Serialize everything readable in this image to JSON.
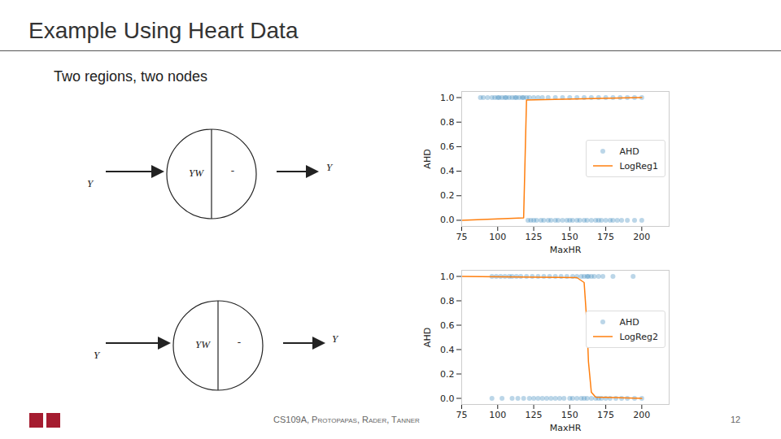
{
  "slide": {
    "title": "Example Using Heart Data",
    "subtitle": "Two regions, two nodes",
    "footer": "CS109A, Protopapas, Rader, Tanner",
    "page": 12
  },
  "diagrams": [
    {
      "input": "Y",
      "weights": "YW",
      "activation": "-",
      "output": "Y"
    },
    {
      "input": "Y",
      "weights": "YW",
      "activation": "-",
      "output": "Y"
    }
  ],
  "chart_data": [
    {
      "type": "scatter",
      "x_label": "MaxHR",
      "y_label": "AHD",
      "xlim": [
        75,
        219
      ],
      "xticks": [
        75,
        100,
        125,
        150,
        175,
        200
      ],
      "ylim": [
        -0.05,
        1.05
      ],
      "yticks": [
        {
          "value": 0,
          "label": "0.0"
        },
        0.2,
        0.4,
        0.6,
        0.8,
        {
          "value": 1,
          "label": "1.0"
        }
      ],
      "grid": false,
      "legend": "right",
      "series": [
        {
          "name": "AHD",
          "type": "scatter",
          "marker": "circle",
          "color": "#1f77b4",
          "x": [
            88,
            90,
            93,
            96,
            98,
            100,
            101,
            103,
            105,
            106,
            108,
            110,
            112,
            113,
            115,
            117,
            118,
            120,
            122,
            125,
            128,
            131,
            135,
            140,
            145,
            150,
            155,
            160,
            165,
            170,
            175,
            180,
            185,
            190,
            195,
            200,
            121,
            123,
            125,
            127,
            130,
            132,
            135,
            137,
            140,
            142,
            145,
            148,
            150,
            152,
            155,
            157,
            160,
            162,
            165,
            168,
            170,
            172,
            175,
            178,
            180,
            183,
            186,
            190,
            195,
            200
          ],
          "values": [
            1,
            1,
            1,
            1,
            1,
            1,
            1,
            1,
            1,
            1,
            1,
            1,
            1,
            1,
            1,
            1,
            1,
            1,
            1,
            1,
            1,
            1,
            1,
            1,
            1,
            1,
            1,
            1,
            1,
            1,
            1,
            1,
            1,
            1,
            1,
            1,
            0,
            0,
            0,
            0,
            0,
            0,
            0,
            0,
            0,
            0,
            0,
            0,
            0,
            0,
            0,
            0,
            0,
            0,
            0,
            0,
            0,
            0,
            0,
            0,
            0,
            0,
            0,
            0,
            0,
            0
          ]
        },
        {
          "name": "LogReg1",
          "type": "line",
          "line_style": "solid",
          "color": "#ff7f0e",
          "x": [
            75,
            118,
            119,
            120,
            200
          ],
          "values": [
            0,
            0.02,
            0.5,
            0.98,
            1
          ]
        }
      ]
    },
    {
      "type": "scatter",
      "x_label": "MaxHR",
      "y_label": "AHD",
      "xlim": [
        75,
        219
      ],
      "xticks": [
        75,
        100,
        125,
        150,
        175,
        200
      ],
      "ylim": [
        -0.05,
        1.05
      ],
      "yticks": [
        {
          "value": 0,
          "label": "0.0"
        },
        0.2,
        0.4,
        0.6,
        0.8,
        {
          "value": 1,
          "label": "1.0"
        }
      ],
      "grid": false,
      "legend": "right",
      "series": [
        {
          "name": "AHD",
          "type": "scatter",
          "marker": "circle",
          "color": "#1f77b4",
          "x": [
            96,
            99,
            102,
            105,
            108,
            110,
            113,
            116,
            120,
            124,
            128,
            132,
            136,
            140,
            144,
            148,
            152,
            155,
            158,
            160,
            162,
            163,
            165,
            167,
            170,
            173,
            180,
            194,
            96,
            103,
            110,
            114,
            118,
            122,
            125,
            128,
            131,
            134,
            137,
            140,
            143,
            146,
            150,
            152,
            155,
            158,
            160,
            162,
            165,
            168,
            170,
            172,
            175,
            178,
            182,
            186,
            190,
            195,
            200
          ],
          "values": [
            1,
            1,
            1,
            1,
            1,
            1,
            1,
            1,
            1,
            1,
            1,
            1,
            1,
            1,
            1,
            1,
            1,
            1,
            1,
            1,
            1,
            1,
            1,
            1,
            1,
            1,
            1,
            1,
            0,
            0,
            0,
            0,
            0,
            0,
            0,
            0,
            0,
            0,
            0,
            0,
            0,
            0,
            0,
            0,
            0,
            0,
            0,
            0,
            0,
            0,
            0,
            0,
            0,
            0,
            0,
            0,
            0,
            0,
            0
          ]
        },
        {
          "name": "LogReg2",
          "type": "line",
          "line_style": "solid",
          "color": "#ff7f0e",
          "x": [
            75,
            155,
            160,
            162,
            163,
            165,
            168,
            200
          ],
          "values": [
            1,
            0.99,
            0.95,
            0.6,
            0.3,
            0.05,
            0.01,
            0
          ]
        }
      ]
    }
  ]
}
